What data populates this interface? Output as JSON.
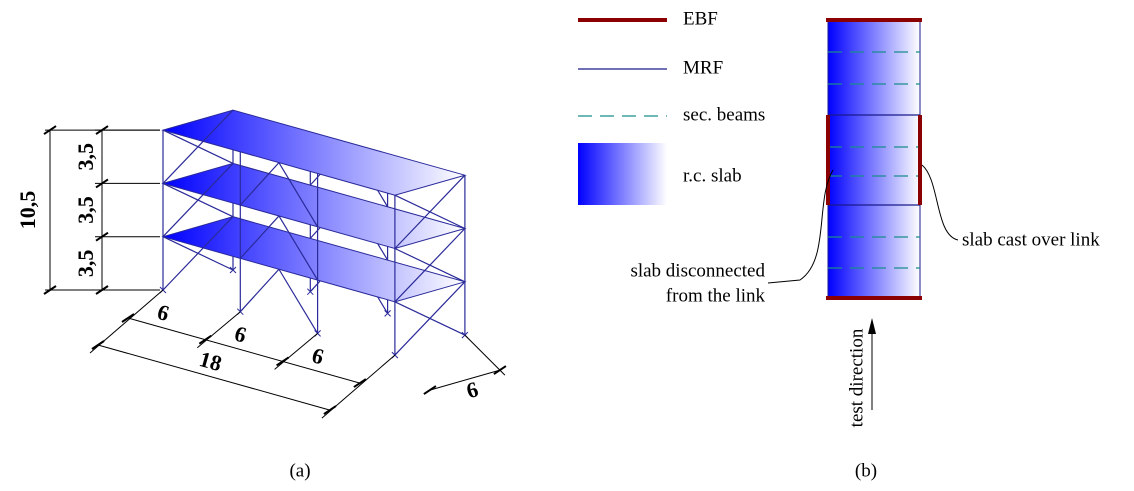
{
  "panel_a": {
    "caption": "(a)",
    "total_height": "10,5",
    "story_heights": [
      "3,5",
      "3,5",
      "3,5"
    ],
    "bay_widths": [
      "6",
      "6",
      "6"
    ],
    "total_length": "18",
    "depth": "6"
  },
  "panel_b": {
    "caption": "(b)",
    "legend": [
      {
        "label": "EBF"
      },
      {
        "label": "MRF"
      },
      {
        "label": "sec. beams"
      },
      {
        "label": "r.c. slab"
      }
    ],
    "annotation_left": [
      "slab disconnected",
      "from the link"
    ],
    "annotation_right": "slab cast over link",
    "test_direction": "test direction"
  }
}
